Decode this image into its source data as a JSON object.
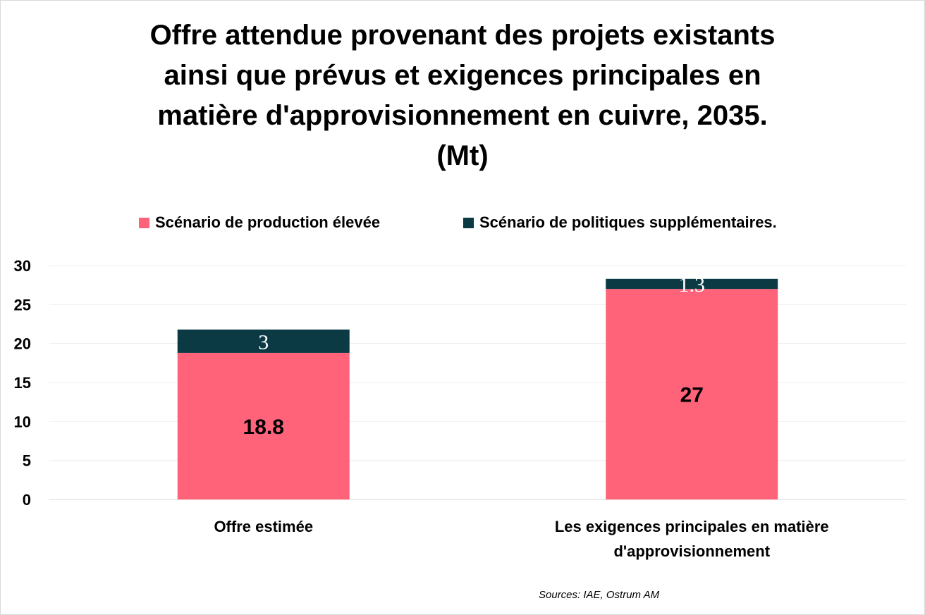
{
  "chart_data": {
    "type": "bar",
    "stacked": true,
    "title_lines": [
      "Offre attendue provenant des projets existants",
      "ainsi que prévus et exigences principales en",
      "matière d'approvisionnement en cuivre, 2035.",
      "(Mt)"
    ],
    "categories": [
      "Offre estimée",
      "Les exigences principales en matière d'approvisionnement"
    ],
    "category_label_lines": [
      [
        "Offre estimée"
      ],
      [
        "Les exigences principales en matière",
        "d'approvisionnement"
      ]
    ],
    "series": [
      {
        "name": "Scénario de production élevée",
        "values": [
          18.8,
          27
        ],
        "labels": [
          "18.8",
          "27"
        ],
        "color": "#FF6379"
      },
      {
        "name": "Scénario de politiques supplémentaires.",
        "values": [
          3,
          1.3
        ],
        "labels": [
          "3",
          "1.3"
        ],
        "color": "#0B3A44"
      }
    ],
    "ylim": [
      0,
      30
    ],
    "yticks": [
      "0",
      "5",
      "10",
      "15",
      "20",
      "25",
      "30"
    ],
    "grid": true,
    "legend_position": "top",
    "source": "Sources: IAE, Ostrum AM"
  }
}
